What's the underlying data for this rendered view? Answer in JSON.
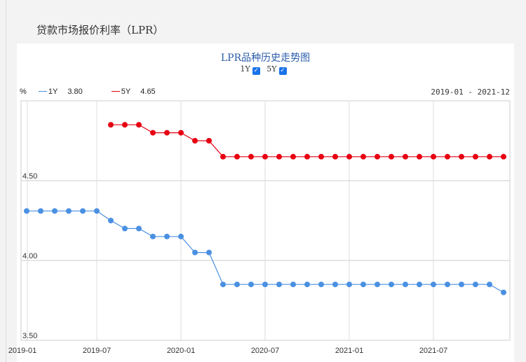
{
  "page_title": "贷款市场报价利率（LPR）",
  "chart_data": {
    "type": "line",
    "title": "LPR品种历史走势图",
    "toggles": [
      {
        "label": "1Y",
        "checked": true
      },
      {
        "label": "5Y",
        "checked": true
      }
    ],
    "ylabel": "%",
    "range_label": "2019-01 - 2021-12",
    "ylim": [
      3.5,
      5.0
    ],
    "yticks": [
      "3.50",
      "4.00",
      "4.50"
    ],
    "xticks": [
      "2019-01",
      "2019-07",
      "2020-01",
      "2020-07",
      "2021-01",
      "2021-07"
    ],
    "xtick_month_index": [
      0,
      6,
      12,
      18,
      24,
      30
    ],
    "series": [
      {
        "name": "1Y",
        "latest": "3.80",
        "color": "#4a90e2",
        "start_month_index": 1,
        "values": [
          4.31,
          4.31,
          4.31,
          4.31,
          4.31,
          4.31,
          4.25,
          4.2,
          4.2,
          4.15,
          4.15,
          4.15,
          4.05,
          4.05,
          3.85,
          3.85,
          3.85,
          3.85,
          3.85,
          3.85,
          3.85,
          3.85,
          3.85,
          3.85,
          3.85,
          3.85,
          3.85,
          3.85,
          3.85,
          3.85,
          3.85,
          3.85,
          3.85,
          3.85,
          3.8
        ]
      },
      {
        "name": "5Y",
        "latest": "4.65",
        "color": "#e60012",
        "start_month_index": 7,
        "values": [
          4.85,
          4.85,
          4.85,
          4.8,
          4.8,
          4.8,
          4.75,
          4.75,
          4.65,
          4.65,
          4.65,
          4.65,
          4.65,
          4.65,
          4.65,
          4.65,
          4.65,
          4.65,
          4.65,
          4.65,
          4.65,
          4.65,
          4.65,
          4.65,
          4.65,
          4.65,
          4.65,
          4.65,
          4.65
        ]
      }
    ]
  }
}
